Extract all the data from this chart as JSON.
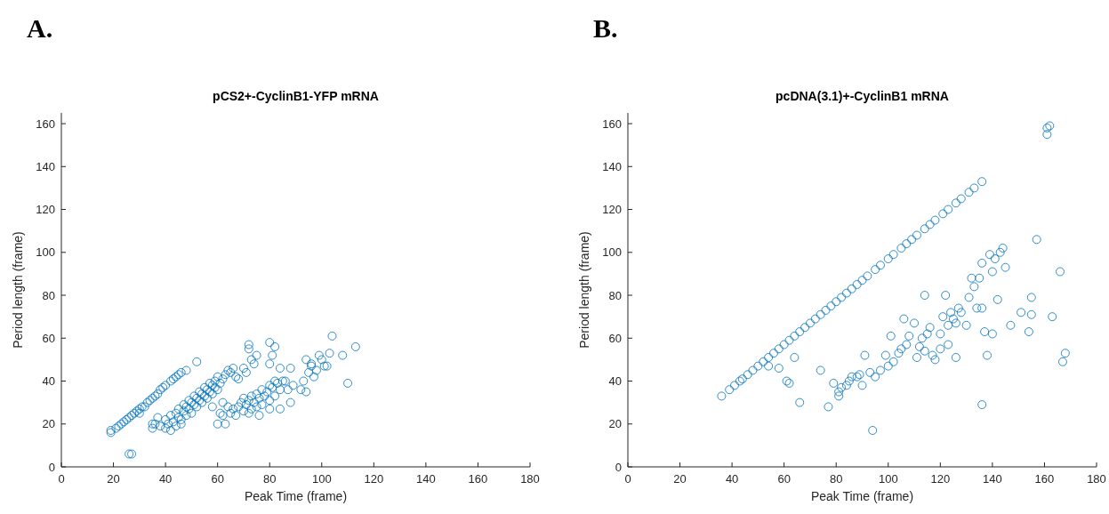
{
  "chart_data": [
    {
      "type": "scatter",
      "title": "pCS2+-CyclinB1-YFP mRNA",
      "xlabel": "Peak Time (frame)",
      "ylabel": "Period length (frame)",
      "annotations": [
        "A."
      ],
      "marker": "circle",
      "xlim": [
        0,
        180
      ],
      "ylim": [
        0,
        165
      ],
      "xticks": [
        0,
        20,
        40,
        60,
        80,
        100,
        120,
        140,
        160,
        180
      ],
      "yticks": [
        0,
        20,
        40,
        60,
        80,
        100,
        120,
        140,
        160
      ],
      "series": [
        {
          "color": "#0072bd",
          "x": [
            19,
            19,
            21,
            22,
            23,
            24,
            25,
            26,
            27,
            28,
            29,
            30,
            31,
            32,
            33,
            34,
            35,
            36,
            37,
            38,
            39,
            40,
            42,
            43,
            44,
            45,
            46,
            48,
            52,
            26,
            27,
            35,
            37,
            30,
            35,
            36,
            38,
            40,
            40,
            41,
            42,
            42,
            43,
            44,
            44,
            45,
            45,
            46,
            46,
            47,
            47,
            48,
            48,
            49,
            49,
            50,
            50,
            51,
            51,
            52,
            52,
            53,
            53,
            54,
            54,
            55,
            55,
            56,
            56,
            57,
            57,
            58,
            58,
            59,
            59,
            60,
            60,
            61,
            62,
            63,
            64,
            65,
            66,
            67,
            68,
            60,
            63,
            62,
            61,
            62,
            64,
            58,
            65,
            66,
            67,
            68,
            69,
            70,
            70,
            71,
            72,
            72,
            73,
            73,
            74,
            75,
            75,
            76,
            77,
            77,
            78,
            79,
            80,
            80,
            81,
            82,
            82,
            83,
            84,
            85,
            76,
            80,
            84,
            72,
            72,
            73,
            74,
            75,
            80,
            81,
            82,
            84,
            86,
            88,
            70,
            71,
            80,
            92,
            93,
            94,
            95,
            96,
            97,
            98,
            100,
            101,
            103,
            104,
            108,
            110,
            113,
            94,
            96,
            102,
            99,
            87,
            88,
            89
          ],
          "values": [
            16,
            17,
            18,
            19,
            20,
            21,
            22,
            23,
            24,
            25,
            26,
            27,
            28,
            28,
            30,
            31,
            32,
            33,
            34,
            36,
            37,
            38,
            40,
            41,
            42,
            43,
            44,
            45,
            49,
            6,
            6,
            20,
            23,
            25,
            18,
            20,
            19,
            18,
            22,
            20,
            24,
            17,
            21,
            25,
            19,
            23,
            27,
            22,
            20,
            26,
            29,
            24,
            28,
            27,
            31,
            25,
            30,
            29,
            33,
            28,
            32,
            31,
            35,
            30,
            34,
            33,
            37,
            32,
            36,
            35,
            39,
            34,
            38,
            37,
            40,
            36,
            42,
            39,
            41,
            43,
            45,
            44,
            46,
            42,
            41,
            20,
            20,
            24,
            25,
            30,
            28,
            28,
            25,
            27,
            24,
            28,
            30,
            26,
            32,
            29,
            31,
            25,
            33,
            27,
            30,
            34,
            28,
            32,
            36,
            29,
            33,
            35,
            38,
            31,
            37,
            40,
            33,
            39,
            36,
            40,
            24,
            27,
            27,
            55,
            57,
            50,
            48,
            52,
            58,
            52,
            56,
            46,
            40,
            46,
            46,
            44,
            48,
            36,
            40,
            35,
            44,
            48,
            42,
            45,
            50,
            47,
            53,
            61,
            52,
            39,
            56,
            50,
            47,
            47,
            52,
            36,
            30,
            38
          ]
        }
      ]
    },
    {
      "type": "scatter",
      "title": "pcDNA(3.1)+-CyclinB1 mRNA",
      "xlabel": "Peak Time (frame)",
      "ylabel": "Period length (frame)",
      "annotations": [
        "B."
      ],
      "marker": "circle",
      "xlim": [
        0,
        180
      ],
      "ylim": [
        0,
        165
      ],
      "xticks": [
        0,
        20,
        40,
        60,
        80,
        100,
        120,
        140,
        160,
        180
      ],
      "yticks": [
        0,
        20,
        40,
        60,
        80,
        100,
        120,
        140,
        160
      ],
      "series": [
        {
          "color": "#0072bd",
          "x": [
            36,
            39,
            41,
            43,
            44,
            46,
            48,
            50,
            52,
            54,
            56,
            58,
            60,
            62,
            64,
            66,
            68,
            70,
            72,
            74,
            76,
            78,
            80,
            82,
            84,
            86,
            88,
            90,
            92,
            95,
            97,
            100,
            102,
            105,
            107,
            109,
            111,
            114,
            116,
            118,
            121,
            123,
            126,
            128,
            131,
            133,
            136,
            161,
            161,
            162,
            54,
            58,
            61,
            62,
            64,
            66,
            74,
            77,
            79,
            81,
            81,
            82,
            84,
            85,
            86,
            88,
            89,
            90,
            91,
            93,
            95,
            97,
            99,
            100,
            101,
            102,
            104,
            105,
            106,
            107,
            108,
            110,
            111,
            112,
            113,
            114,
            115,
            116,
            117,
            118,
            120,
            121,
            122,
            123,
            124,
            125,
            126,
            127,
            128,
            130,
            131,
            132,
            133,
            134,
            135,
            136,
            136,
            137,
            138,
            139,
            140,
            141,
            142,
            143,
            144,
            145,
            147,
            151,
            154,
            155,
            155,
            157,
            163,
            166,
            167,
            168,
            94,
            136,
            114,
            120,
            123,
            126,
            140
          ],
          "values": [
            33,
            36,
            38,
            40,
            41,
            43,
            45,
            47,
            49,
            51,
            53,
            55,
            57,
            59,
            61,
            63,
            65,
            67,
            69,
            71,
            73,
            75,
            77,
            79,
            81,
            83,
            85,
            87,
            89,
            92,
            94,
            97,
            99,
            102,
            104,
            106,
            108,
            111,
            113,
            115,
            118,
            120,
            123,
            125,
            128,
            130,
            133,
            155,
            158,
            159,
            47,
            46,
            40,
            39,
            51,
            30,
            45,
            28,
            39,
            35,
            33,
            37,
            38,
            40,
            42,
            42,
            43,
            38,
            52,
            44,
            42,
            45,
            52,
            47,
            61,
            49,
            53,
            55,
            69,
            57,
            61,
            67,
            51,
            56,
            60,
            54,
            62,
            65,
            52,
            50,
            62,
            70,
            80,
            66,
            72,
            69,
            67,
            74,
            72,
            66,
            79,
            88,
            84,
            74,
            88,
            74,
            95,
            63,
            52,
            99,
            91,
            97,
            78,
            100,
            102,
            93,
            66,
            72,
            63,
            71,
            79,
            106,
            70,
            91,
            49,
            53,
            17,
            29,
            80,
            55,
            57,
            51,
            62
          ]
        }
      ]
    }
  ]
}
